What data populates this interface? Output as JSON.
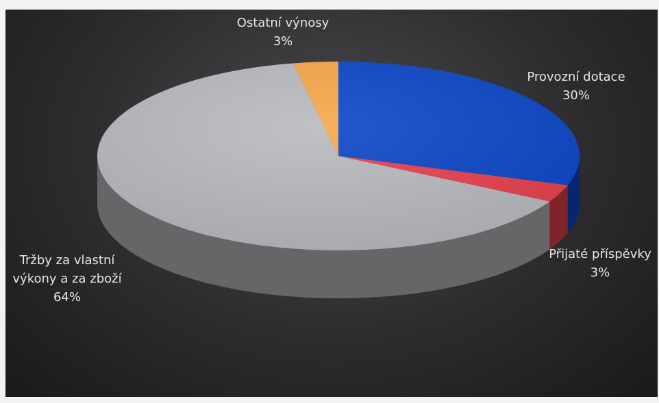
{
  "chart_data": {
    "type": "pie",
    "title": "",
    "slices": [
      {
        "label_lines": [
          "Provozní dotace"
        ],
        "value": 30,
        "display": "30%",
        "color": "#0b47c7"
      },
      {
        "label_lines": [
          "Přijaté příspěvky"
        ],
        "value": 3,
        "display": "3%",
        "color": "#e8414d"
      },
      {
        "label_lines": [
          "Tržby za vlastní",
          "výkony a za zboží"
        ],
        "value": 64,
        "display": "64%",
        "color": "#b9babe"
      },
      {
        "label_lines": [
          "Ostatní výnosy"
        ],
        "value": 3,
        "display": "3%",
        "color": "#f6a74a"
      }
    ],
    "legend": "none",
    "style": "3d"
  }
}
